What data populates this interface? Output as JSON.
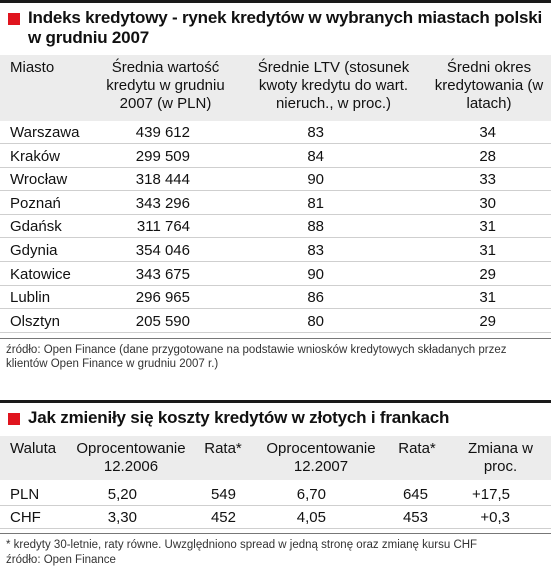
{
  "table1": {
    "title": "Indeks kredytowy - rynek kredytów w wybranych miastach polski w grudniu 2007",
    "headers": [
      "Miasto",
      "Średnia wartość kredytu w grudniu 2007 (w PLN)",
      "Średnie LTV (stosunek kwoty kredytu do wart. nieruch., w proc.)",
      "Średni okres kredytowania (w latach)"
    ],
    "rows": [
      [
        "Warszawa",
        "439 612",
        "83",
        "34"
      ],
      [
        "Kraków",
        "299 509",
        "84",
        "28"
      ],
      [
        "Wrocław",
        "318 444",
        "90",
        "33"
      ],
      [
        "Poznań",
        "343 296",
        "81",
        "30"
      ],
      [
        "Gdańsk",
        "311 764",
        "88",
        "31"
      ],
      [
        "Gdynia",
        "354 046",
        "83",
        "31"
      ],
      [
        "Katowice",
        "343 675",
        "90",
        "29"
      ],
      [
        "Lublin",
        "296 965",
        "86",
        "31"
      ],
      [
        "Olsztyn",
        "205 590",
        "80",
        "29"
      ]
    ],
    "source": "źródło: Open Finance (dane przygotowane na podstawie wniosków kredytowych składanych przez klientów Open Finance w grudniu 2007 r.)"
  },
  "table2": {
    "title": "Jak zmieniły się koszty kredytów w złotych i frankach",
    "headers": [
      "Waluta",
      "Oprocentowanie 12.2006",
      "Rata*",
      "Oprocentowanie 12.2007",
      "Rata*",
      "Zmiana w proc."
    ],
    "rows": [
      [
        "PLN",
        "5,20",
        "549",
        "6,70",
        "645",
        "+17,5"
      ],
      [
        "CHF",
        "3,30",
        "452",
        "4,05",
        "453",
        "+0,3"
      ]
    ],
    "footnote": "* kredyty 30-letnie, raty równe. Uwzględniono spread w jedną stronę oraz zmianę kursu CHF",
    "source": "źródło: Open Finance"
  },
  "colors": {
    "accent": "#e0141e",
    "header_bg": "#ececec",
    "rule": "#1a1a1a"
  }
}
